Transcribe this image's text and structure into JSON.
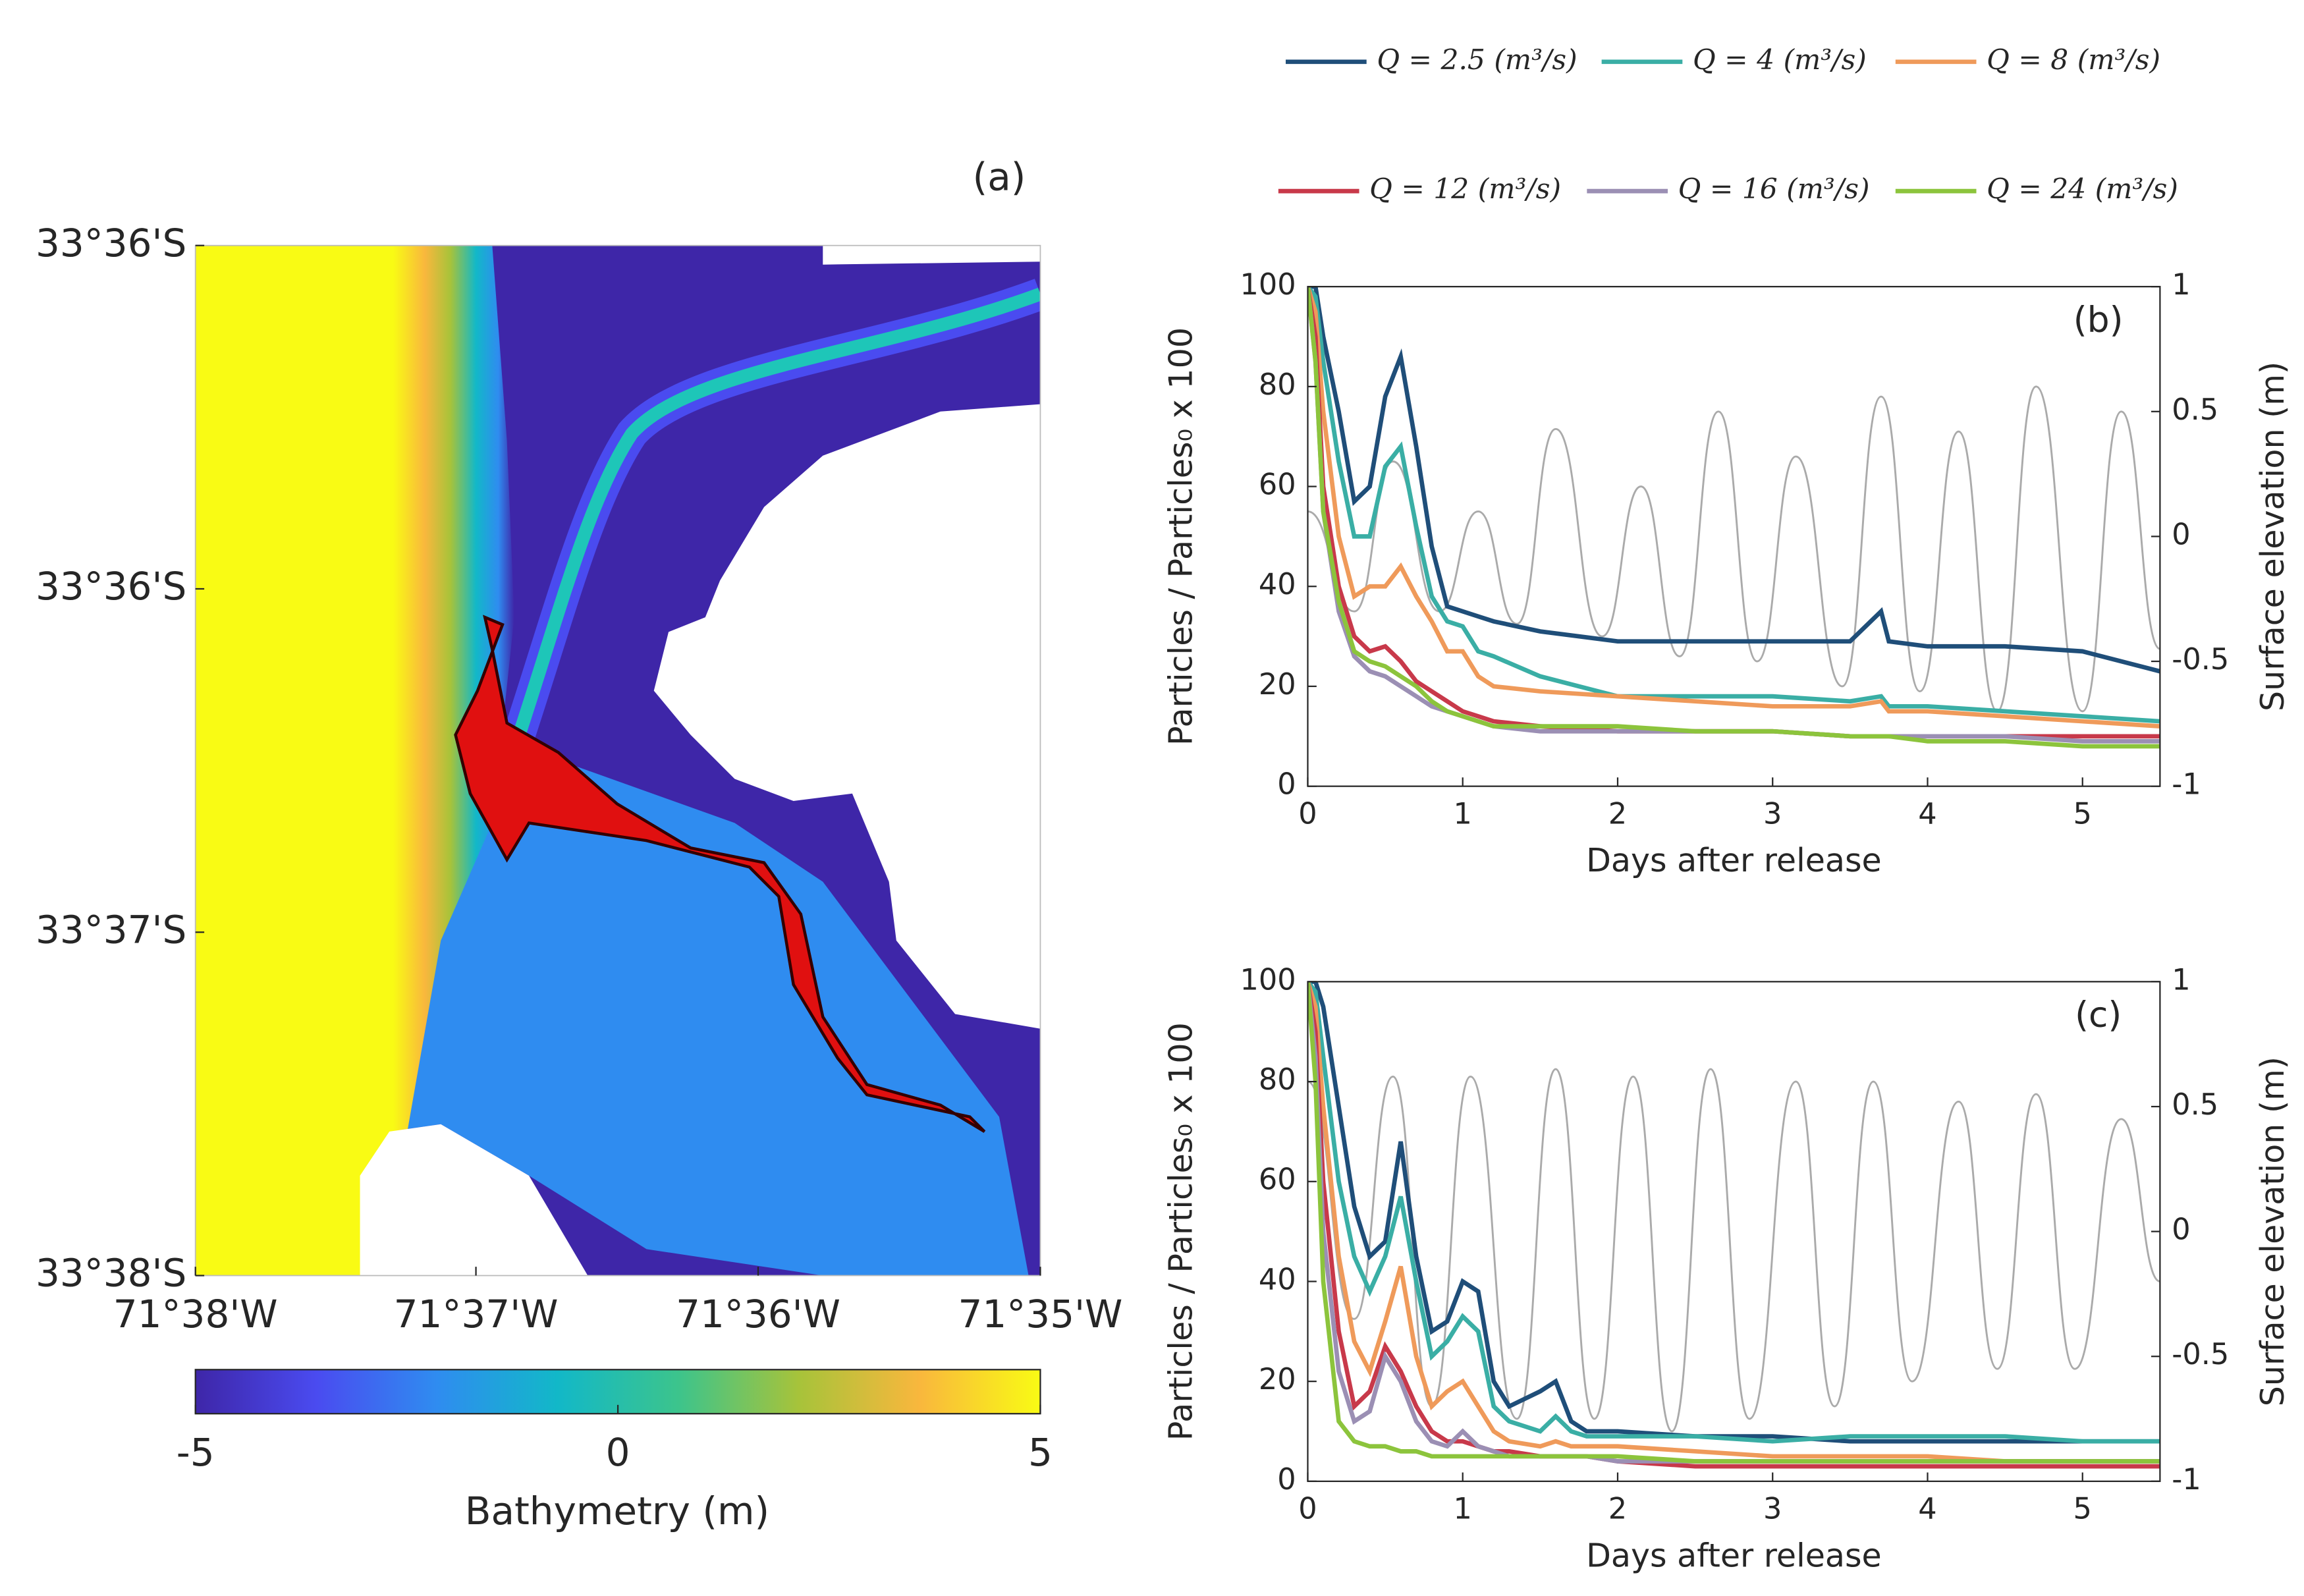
{
  "chart_data": [
    {
      "type": "map",
      "title": "(a)",
      "xlim": [
        -71.6333,
        -71.5833
      ],
      "xticks": [
        {
          "value": -71.6333,
          "label": "71°38'W"
        },
        {
          "value": -71.6167,
          "label": "71°37'W"
        },
        {
          "value": -71.6,
          "label": "71°36'W"
        },
        {
          "value": -71.5833,
          "label": "71°35'W"
        }
      ],
      "ylim": [
        -33.6333,
        -33.6
      ],
      "yticks": [
        {
          "value": -33.6,
          "label": "33°36'S"
        },
        {
          "value": -33.6111,
          "label": "33°36'S"
        },
        {
          "value": -33.6222,
          "label": "33°37'S"
        },
        {
          "value": -33.6333,
          "label": "33°38'S"
        }
      ],
      "colorbar": {
        "label": "Bathymetry (m)",
        "clim": [
          -5,
          5
        ],
        "ticks": [
          -5,
          0,
          5
        ],
        "colors": [
          "#3e26a8",
          "#4a4bf0",
          "#2f8cf0",
          "#12b8c8",
          "#3cc48c",
          "#a7c33a",
          "#f9b73d",
          "#f9fb14"
        ]
      }
    },
    {
      "type": "line",
      "title": "(b)",
      "xlabel": "Days after release",
      "ylabel": "Particles / Particles₀ x 100",
      "y2label": "Surface elevation (m)",
      "xlim": [
        0,
        5.5
      ],
      "xticks": [
        0,
        1,
        2,
        3,
        4,
        5
      ],
      "ylim": [
        0,
        100
      ],
      "yticks": [
        0,
        20,
        40,
        60,
        80,
        100
      ],
      "y2lim": [
        -1,
        1
      ],
      "y2ticks": [
        -1,
        -0.5,
        0,
        0.5,
        1
      ],
      "x": [
        0,
        0.05,
        0.1,
        0.2,
        0.3,
        0.4,
        0.5,
        0.6,
        0.7,
        0.8,
        0.9,
        1.0,
        1.1,
        1.2,
        1.5,
        2,
        2.5,
        3,
        3.5,
        3.7,
        3.75,
        4,
        4.5,
        5,
        5.5
      ],
      "series": [
        {
          "name": "Q = 2.5 (m³/s)",
          "color": "#1f4e79",
          "values": [
            100,
            100,
            90,
            75,
            57,
            60,
            78,
            86,
            68,
            48,
            36,
            35,
            34,
            33,
            31,
            29,
            29,
            29,
            29,
            35,
            29,
            28,
            28,
            27,
            23
          ]
        },
        {
          "name": "Q = 4 (m³/s)",
          "color": "#3aaea5",
          "values": [
            100,
            98,
            85,
            65,
            50,
            50,
            64,
            68,
            52,
            38,
            33,
            32,
            27,
            26,
            22,
            18,
            18,
            18,
            17,
            18,
            16,
            16,
            15,
            14,
            13
          ]
        },
        {
          "name": "Q = 8 (m³/s)",
          "color": "#ef9a5a",
          "values": [
            100,
            95,
            75,
            50,
            38,
            40,
            40,
            44,
            38,
            33,
            27,
            27,
            22,
            20,
            19,
            18,
            17,
            16,
            16,
            17,
            15,
            15,
            14,
            13,
            12
          ]
        },
        {
          "name": "Q = 12 (m³/s)",
          "color": "#c8394a",
          "values": [
            100,
            90,
            60,
            40,
            30,
            27,
            28,
            25,
            21,
            19,
            17,
            15,
            14,
            13,
            12,
            11,
            11,
            11,
            10,
            10,
            10,
            10,
            10,
            10,
            10
          ]
        },
        {
          "name": "Q = 16 (m³/s)",
          "color": "#9b8fb4",
          "values": [
            100,
            85,
            55,
            35,
            26,
            23,
            22,
            20,
            18,
            16,
            15,
            14,
            13,
            12,
            11,
            11,
            11,
            11,
            10,
            10,
            10,
            10,
            10,
            9,
            9
          ]
        },
        {
          "name": "Q = 24 (m³/s)",
          "color": "#8cc43c",
          "values": [
            100,
            85,
            55,
            37,
            27,
            25,
            24,
            22,
            20,
            17,
            15,
            14,
            13,
            12,
            12,
            12,
            11,
            11,
            10,
            10,
            10,
            9,
            9,
            8,
            8
          ]
        },
        {
          "color": "#aaaaaa",
          "axis": "y2",
          "x": [
            0,
            0.3,
            0.55,
            0.85,
            1.1,
            1.35,
            1.6,
            1.9,
            2.15,
            2.4,
            2.65,
            2.9,
            3.15,
            3.45,
            3.7,
            3.95,
            4.2,
            4.45,
            4.7,
            5.0,
            5.25,
            5.5
          ],
          "values": [
            0.1,
            -0.3,
            0.3,
            -0.3,
            0.1,
            -0.35,
            0.43,
            -0.4,
            0.2,
            -0.48,
            0.5,
            -0.5,
            0.32,
            -0.6,
            0.56,
            -0.62,
            0.42,
            -0.7,
            0.6,
            -0.7,
            0.5,
            -0.45
          ]
        }
      ]
    },
    {
      "type": "line",
      "title": "(c)",
      "xlabel": "Days after release",
      "ylabel": "Particles / Particles₀ x 100",
      "y2label": "Surface elevation (m)",
      "xlim": [
        0,
        5.5
      ],
      "xticks": [
        0,
        1,
        2,
        3,
        4,
        5
      ],
      "ylim": [
        0,
        100
      ],
      "yticks": [
        0,
        20,
        40,
        60,
        80,
        100
      ],
      "y2lim": [
        -1,
        1
      ],
      "y2ticks": [
        -1,
        -0.5,
        0,
        0.5,
        1
      ],
      "x": [
        0,
        0.05,
        0.1,
        0.2,
        0.3,
        0.4,
        0.5,
        0.6,
        0.7,
        0.8,
        0.9,
        1.0,
        1.1,
        1.2,
        1.3,
        1.5,
        1.6,
        1.7,
        1.8,
        2,
        2.5,
        3,
        3.5,
        4,
        4.5,
        5,
        5.5
      ],
      "series": [
        {
          "color": "#1f4e79",
          "values": [
            100,
            100,
            95,
            75,
            55,
            45,
            48,
            68,
            45,
            30,
            32,
            40,
            38,
            20,
            15,
            18,
            20,
            12,
            10,
            10,
            9,
            9,
            8,
            8,
            8,
            8,
            8
          ]
        },
        {
          "color": "#3aaea5",
          "values": [
            100,
            98,
            85,
            60,
            45,
            38,
            45,
            57,
            40,
            25,
            28,
            33,
            30,
            15,
            12,
            10,
            13,
            10,
            9,
            9,
            9,
            8,
            9,
            9,
            9,
            8,
            8
          ]
        },
        {
          "color": "#ef9a5a",
          "values": [
            100,
            95,
            75,
            45,
            28,
            22,
            32,
            43,
            25,
            15,
            18,
            20,
            15,
            10,
            8,
            7,
            8,
            7,
            7,
            7,
            6,
            5,
            5,
            5,
            4,
            4,
            4
          ]
        },
        {
          "color": "#c8394a",
          "values": [
            100,
            90,
            60,
            30,
            15,
            18,
            27,
            22,
            15,
            10,
            8,
            8,
            7,
            6,
            6,
            5,
            5,
            5,
            5,
            4,
            3,
            3,
            3,
            3,
            3,
            3,
            3
          ]
        },
        {
          "color": "#9b8fb4",
          "values": [
            100,
            85,
            50,
            22,
            12,
            14,
            25,
            20,
            12,
            8,
            7,
            10,
            7,
            6,
            5,
            5,
            5,
            5,
            5,
            4,
            4,
            4,
            4,
            4,
            4,
            4,
            4
          ]
        },
        {
          "color": "#8cc43c",
          "values": [
            100,
            80,
            40,
            12,
            8,
            7,
            7,
            6,
            6,
            5,
            5,
            5,
            5,
            5,
            5,
            5,
            5,
            5,
            5,
            5,
            4,
            4,
            4,
            4,
            4,
            4,
            4
          ]
        },
        {
          "color": "#aaaaaa",
          "axis": "y2",
          "x": [
            0,
            0.3,
            0.55,
            0.8,
            1.05,
            1.35,
            1.6,
            1.85,
            2.1,
            2.35,
            2.6,
            2.85,
            3.15,
            3.4,
            3.65,
            3.9,
            4.2,
            4.45,
            4.7,
            4.95,
            5.25,
            5.5
          ],
          "values": [
            0.6,
            -0.35,
            0.62,
            -0.7,
            0.62,
            -0.75,
            0.65,
            -0.75,
            0.62,
            -0.8,
            0.65,
            -0.75,
            0.6,
            -0.7,
            0.6,
            -0.6,
            0.52,
            -0.55,
            0.55,
            -0.55,
            0.45,
            -0.2
          ]
        }
      ]
    }
  ]
}
